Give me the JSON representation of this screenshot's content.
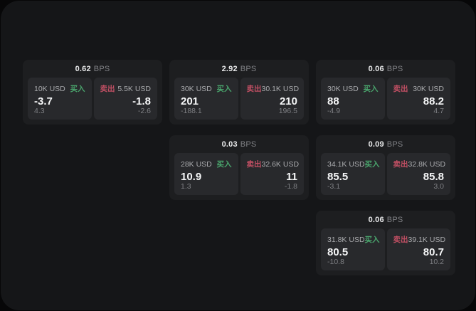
{
  "labels": {
    "buy": "买入",
    "sell": "卖出",
    "bps_unit": "BPS"
  },
  "colors": {
    "buy_accent": "#4aa56d",
    "sell_accent": "#c04f63",
    "window_background": "#151618",
    "card_background": "#1d1e20",
    "panel_background": "#28292c"
  },
  "cards": [
    {
      "bps": "0.62",
      "row": 1,
      "col": 1,
      "buy": {
        "amount": "10K USD",
        "value": "-3.7",
        "delta": "4.3"
      },
      "sell": {
        "amount": "5.5K USD",
        "value": "-1.8",
        "delta": "-2.6"
      }
    },
    {
      "bps": "2.92",
      "row": 1,
      "col": 2,
      "buy": {
        "amount": "30K USD",
        "value": "201",
        "delta": "-188.1"
      },
      "sell": {
        "amount": "30.1K USD",
        "value": "210",
        "delta": "196.5"
      }
    },
    {
      "bps": "0.06",
      "row": 1,
      "col": 3,
      "buy": {
        "amount": "30K USD",
        "value": "88",
        "delta": "-4.9"
      },
      "sell": {
        "amount": "30K USD",
        "value": "88.2",
        "delta": "4.7"
      }
    },
    {
      "bps": "0.03",
      "row": 2,
      "col": 2,
      "buy": {
        "amount": "28K USD",
        "value": "10.9",
        "delta": "1.3"
      },
      "sell": {
        "amount": "32.6K USD",
        "value": "11",
        "delta": "-1.8"
      }
    },
    {
      "bps": "0.09",
      "row": 2,
      "col": 3,
      "buy": {
        "amount": "34.1K USD",
        "value": "85.5",
        "delta": "-3.1"
      },
      "sell": {
        "amount": "32.8K USD",
        "value": "85.8",
        "delta": "3.0"
      }
    },
    {
      "bps": "0.06",
      "row": 3,
      "col": 3,
      "buy": {
        "amount": "31.8K USD",
        "value": "80.5",
        "delta": "-10.8"
      },
      "sell": {
        "amount": "39.1K USD",
        "value": "80.7",
        "delta": "10.2"
      }
    }
  ]
}
